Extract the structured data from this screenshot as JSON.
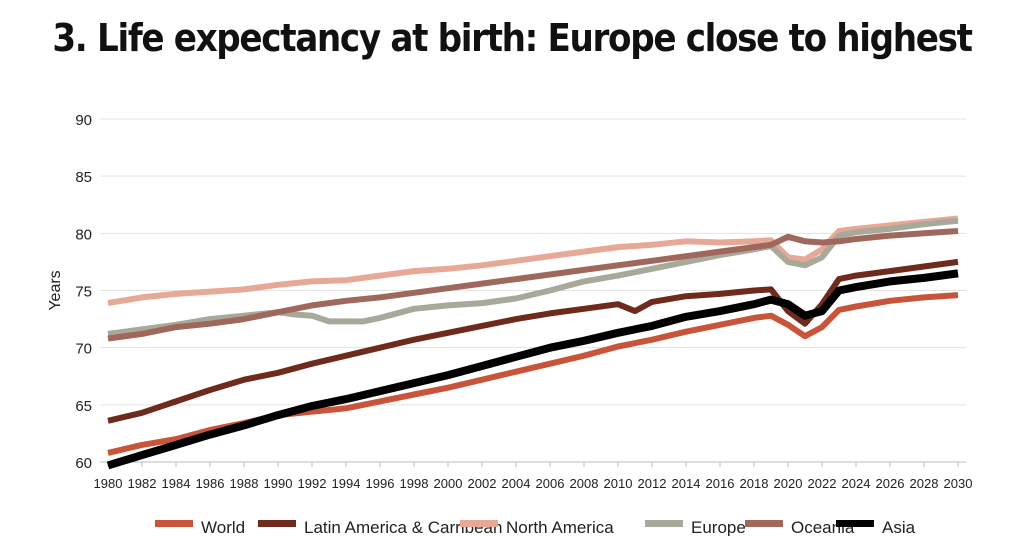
{
  "page": {
    "title": "3. Life expectancy at birth: Europe close to highest"
  },
  "chart_data": {
    "type": "line",
    "title": "3. Life expectancy at birth: Europe close to highest",
    "xlabel": "",
    "ylabel": "Years",
    "xlim": [
      1980,
      2030
    ],
    "ylim": [
      60,
      90
    ],
    "yticks": [
      60,
      65,
      70,
      75,
      80,
      85,
      90
    ],
    "xticks": [
      1980,
      1982,
      1984,
      1986,
      1988,
      1990,
      1992,
      1994,
      1996,
      1998,
      2000,
      2002,
      2004,
      2006,
      2008,
      2010,
      2012,
      2014,
      2016,
      2018,
      2020,
      2022,
      2024,
      2026,
      2028,
      2030
    ],
    "grid": true,
    "legend_position": "bottom",
    "series": [
      {
        "name": "World",
        "color": "#c8553a",
        "width": 6,
        "points": [
          [
            1980,
            60.8
          ],
          [
            1982,
            61.5
          ],
          [
            1984,
            62.0
          ],
          [
            1986,
            62.8
          ],
          [
            1988,
            63.4
          ],
          [
            1990,
            64.1
          ],
          [
            1992,
            64.4
          ],
          [
            1994,
            64.7
          ],
          [
            1996,
            65.3
          ],
          [
            1998,
            65.9
          ],
          [
            2000,
            66.5
          ],
          [
            2002,
            67.2
          ],
          [
            2004,
            67.9
          ],
          [
            2006,
            68.6
          ],
          [
            2008,
            69.3
          ],
          [
            2010,
            70.1
          ],
          [
            2012,
            70.7
          ],
          [
            2014,
            71.4
          ],
          [
            2016,
            72.0
          ],
          [
            2018,
            72.6
          ],
          [
            2019,
            72.8
          ],
          [
            2020,
            72.0
          ],
          [
            2021,
            71.0
          ],
          [
            2022,
            71.8
          ],
          [
            2023,
            73.3
          ],
          [
            2024,
            73.6
          ],
          [
            2026,
            74.1
          ],
          [
            2028,
            74.4
          ],
          [
            2030,
            74.6
          ]
        ]
      },
      {
        "name": "Latin America & Carribean",
        "color": "#6e2a1c",
        "width": 6,
        "points": [
          [
            1980,
            63.6
          ],
          [
            1982,
            64.3
          ],
          [
            1984,
            65.3
          ],
          [
            1986,
            66.3
          ],
          [
            1988,
            67.2
          ],
          [
            1990,
            67.8
          ],
          [
            1992,
            68.6
          ],
          [
            1994,
            69.3
          ],
          [
            1996,
            70.0
          ],
          [
            1998,
            70.7
          ],
          [
            2000,
            71.3
          ],
          [
            2002,
            71.9
          ],
          [
            2004,
            72.5
          ],
          [
            2006,
            73.0
          ],
          [
            2008,
            73.4
          ],
          [
            2010,
            73.8
          ],
          [
            2011,
            73.2
          ],
          [
            2012,
            74.0
          ],
          [
            2014,
            74.5
          ],
          [
            2016,
            74.7
          ],
          [
            2018,
            75.0
          ],
          [
            2019,
            75.1
          ],
          [
            2020,
            73.2
          ],
          [
            2021,
            72.1
          ],
          [
            2022,
            73.8
          ],
          [
            2023,
            76.0
          ],
          [
            2024,
            76.3
          ],
          [
            2026,
            76.7
          ],
          [
            2028,
            77.1
          ],
          [
            2030,
            77.5
          ]
        ]
      },
      {
        "name": "North America",
        "color": "#e8a898",
        "width": 6,
        "points": [
          [
            1980,
            73.9
          ],
          [
            1982,
            74.4
          ],
          [
            1984,
            74.7
          ],
          [
            1986,
            74.9
          ],
          [
            1988,
            75.1
          ],
          [
            1990,
            75.5
          ],
          [
            1992,
            75.8
          ],
          [
            1994,
            75.9
          ],
          [
            1996,
            76.3
          ],
          [
            1998,
            76.7
          ],
          [
            2000,
            76.9
          ],
          [
            2002,
            77.2
          ],
          [
            2004,
            77.6
          ],
          [
            2006,
            78.0
          ],
          [
            2008,
            78.4
          ],
          [
            2010,
            78.8
          ],
          [
            2012,
            79.0
          ],
          [
            2014,
            79.3
          ],
          [
            2016,
            79.2
          ],
          [
            2018,
            79.3
          ],
          [
            2019,
            79.4
          ],
          [
            2020,
            77.9
          ],
          [
            2021,
            77.7
          ],
          [
            2022,
            78.6
          ],
          [
            2023,
            80.2
          ],
          [
            2024,
            80.4
          ],
          [
            2026,
            80.7
          ],
          [
            2028,
            81.0
          ],
          [
            2030,
            81.3
          ]
        ]
      },
      {
        "name": "Europe",
        "color": "#a8a99a",
        "width": 6,
        "points": [
          [
            1980,
            71.2
          ],
          [
            1982,
            71.6
          ],
          [
            1984,
            72.0
          ],
          [
            1986,
            72.5
          ],
          [
            1988,
            72.8
          ],
          [
            1990,
            73.1
          ],
          [
            1991,
            72.9
          ],
          [
            1992,
            72.8
          ],
          [
            1993,
            72.3
          ],
          [
            1994,
            72.3
          ],
          [
            1995,
            72.3
          ],
          [
            1996,
            72.6
          ],
          [
            1998,
            73.4
          ],
          [
            2000,
            73.7
          ],
          [
            2002,
            73.9
          ],
          [
            2004,
            74.3
          ],
          [
            2006,
            75.0
          ],
          [
            2008,
            75.8
          ],
          [
            2010,
            76.3
          ],
          [
            2012,
            76.9
          ],
          [
            2014,
            77.5
          ],
          [
            2016,
            78.1
          ],
          [
            2018,
            78.6
          ],
          [
            2019,
            78.9
          ],
          [
            2020,
            77.5
          ],
          [
            2021,
            77.2
          ],
          [
            2022,
            77.9
          ],
          [
            2023,
            79.8
          ],
          [
            2024,
            80.1
          ],
          [
            2026,
            80.4
          ],
          [
            2028,
            80.8
          ],
          [
            2030,
            81.1
          ]
        ]
      },
      {
        "name": "Oceania",
        "color": "#a0685d",
        "width": 6,
        "points": [
          [
            1980,
            70.8
          ],
          [
            1982,
            71.2
          ],
          [
            1984,
            71.8
          ],
          [
            1986,
            72.1
          ],
          [
            1988,
            72.5
          ],
          [
            1990,
            73.1
          ],
          [
            1992,
            73.7
          ],
          [
            1994,
            74.1
          ],
          [
            1996,
            74.4
          ],
          [
            1998,
            74.8
          ],
          [
            2000,
            75.2
          ],
          [
            2002,
            75.6
          ],
          [
            2004,
            76.0
          ],
          [
            2006,
            76.4
          ],
          [
            2008,
            76.8
          ],
          [
            2010,
            77.2
          ],
          [
            2012,
            77.6
          ],
          [
            2014,
            78.0
          ],
          [
            2016,
            78.4
          ],
          [
            2018,
            78.8
          ],
          [
            2019,
            79.0
          ],
          [
            2020,
            79.7
          ],
          [
            2021,
            79.3
          ],
          [
            2022,
            79.2
          ],
          [
            2023,
            79.3
          ],
          [
            2024,
            79.5
          ],
          [
            2026,
            79.8
          ],
          [
            2028,
            80.0
          ],
          [
            2030,
            80.2
          ]
        ]
      },
      {
        "name": "Asia",
        "color": "#000000",
        "width": 8,
        "points": [
          [
            1980,
            59.7
          ],
          [
            1982,
            60.6
          ],
          [
            1984,
            61.5
          ],
          [
            1986,
            62.4
          ],
          [
            1988,
            63.2
          ],
          [
            1990,
            64.1
          ],
          [
            1992,
            64.9
          ],
          [
            1994,
            65.5
          ],
          [
            1996,
            66.2
          ],
          [
            1998,
            66.9
          ],
          [
            2000,
            67.6
          ],
          [
            2002,
            68.4
          ],
          [
            2004,
            69.2
          ],
          [
            2006,
            70.0
          ],
          [
            2008,
            70.6
          ],
          [
            2010,
            71.3
          ],
          [
            2012,
            71.9
          ],
          [
            2014,
            72.7
          ],
          [
            2016,
            73.2
          ],
          [
            2018,
            73.8
          ],
          [
            2019,
            74.2
          ],
          [
            2020,
            73.8
          ],
          [
            2021,
            72.8
          ],
          [
            2022,
            73.2
          ],
          [
            2023,
            75.0
          ],
          [
            2024,
            75.3
          ],
          [
            2026,
            75.8
          ],
          [
            2028,
            76.1
          ],
          [
            2030,
            76.5
          ]
        ]
      }
    ]
  }
}
